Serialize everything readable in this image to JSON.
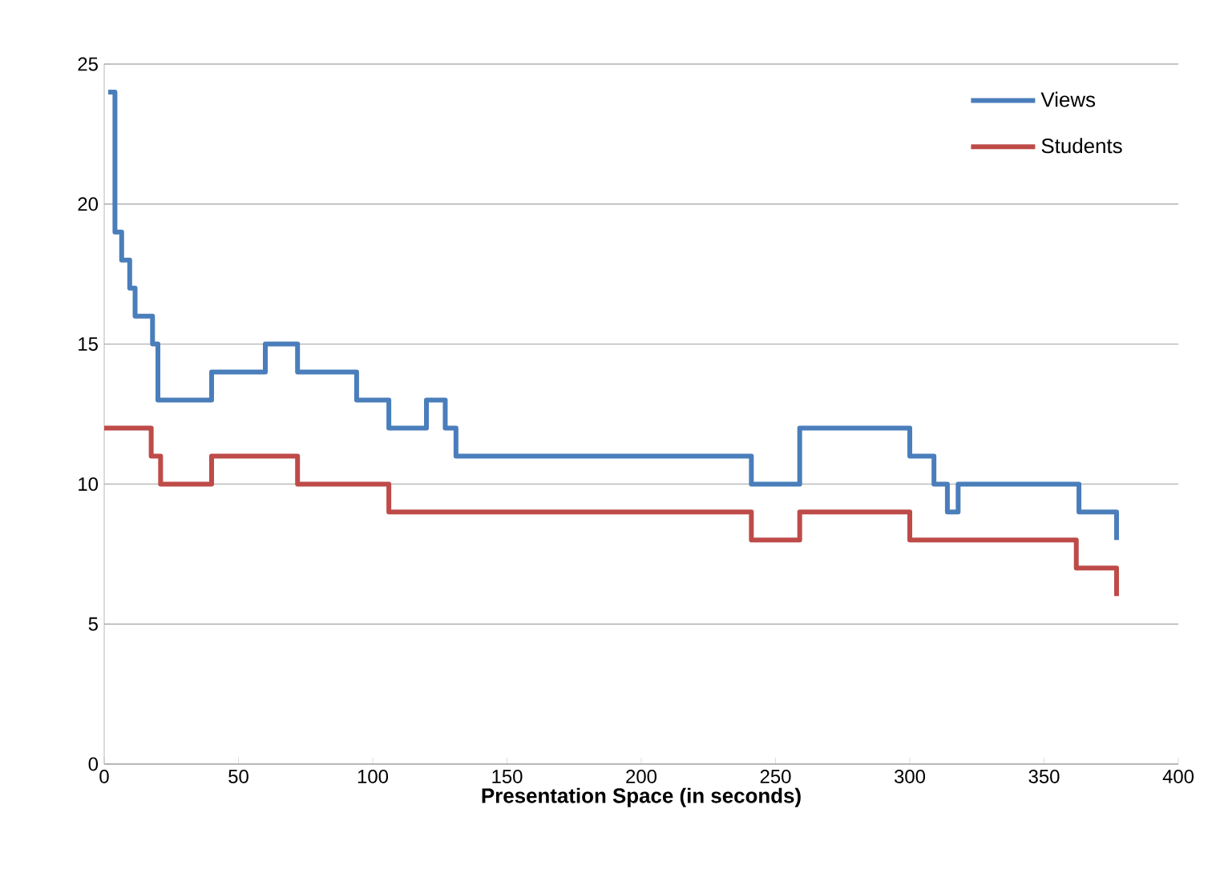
{
  "chart_data": {
    "type": "step",
    "xlabel": "Presentation Space (in seconds)",
    "xlim": [
      0,
      400
    ],
    "xticks": [
      0,
      50,
      100,
      150,
      200,
      250,
      300,
      350,
      400
    ],
    "ylim": [
      0,
      25
    ],
    "yticks": [
      0,
      5,
      10,
      15,
      20,
      25
    ],
    "grid": "y",
    "legend": "top right",
    "line_style": "solid",
    "marker": "none",
    "series": [
      {
        "name": "Views",
        "color": "#4a7ebb",
        "x": [
          1.5,
          4,
          6.5,
          9.5,
          11.5,
          18,
          20,
          40,
          60,
          72,
          94,
          106,
          120,
          127,
          131,
          241,
          259,
          300,
          309,
          314,
          318,
          363,
          377
        ],
        "values": [
          24,
          19,
          18,
          17,
          16,
          15,
          13,
          14,
          15,
          14,
          13,
          12,
          13,
          12,
          11,
          10,
          12,
          11,
          10,
          9,
          10,
          9,
          8
        ]
      },
      {
        "name": "Students",
        "color": "#be4b48",
        "x": [
          0,
          17.5,
          21,
          40,
          72,
          106,
          241,
          259,
          300,
          362,
          377
        ],
        "values": [
          12,
          11,
          10,
          11,
          10,
          9,
          8,
          9,
          8,
          7,
          6
        ]
      }
    ]
  }
}
